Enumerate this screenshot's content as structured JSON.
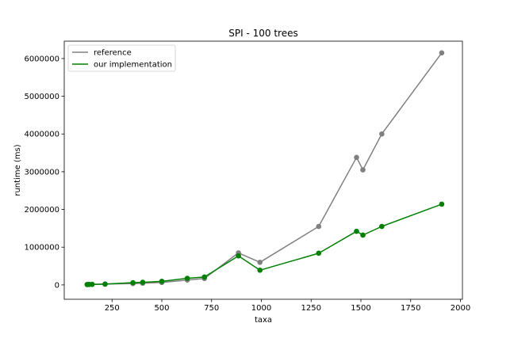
{
  "chart_data": {
    "type": "line",
    "title": "SPI - 100 trees",
    "xlabel": "taxa",
    "ylabel": "runtime (ms)",
    "xlim": [
      10,
      2010
    ],
    "ylim": [
      -380000,
      6460000
    ],
    "xticks": [
      250,
      500,
      750,
      1000,
      1250,
      1500,
      1750,
      2000
    ],
    "yticks": [
      0,
      1000000,
      2000000,
      3000000,
      4000000,
      5000000,
      6000000
    ],
    "grid": false,
    "legend_position": "top-left",
    "series": [
      {
        "name": "reference",
        "color": "#808080",
        "x": [
          125,
          135,
          150,
          215,
          355,
          404,
          500,
          628,
          714,
          885,
          993,
          1288,
          1478,
          1510,
          1605,
          1906
        ],
        "y": [
          10000,
          12000,
          15000,
          25000,
          35000,
          45000,
          65000,
          130000,
          170000,
          850000,
          600000,
          1550000,
          3380000,
          3050000,
          4000000,
          6150000
        ]
      },
      {
        "name": "our implementation",
        "color": "#008000",
        "x": [
          125,
          135,
          150,
          215,
          355,
          404,
          500,
          628,
          714,
          885,
          993,
          1288,
          1478,
          1510,
          1605,
          1906
        ],
        "y": [
          10000,
          12000,
          15000,
          20000,
          60000,
          70000,
          95000,
          175000,
          210000,
          770000,
          390000,
          840000,
          1420000,
          1320000,
          1550000,
          2140000
        ]
      }
    ]
  }
}
